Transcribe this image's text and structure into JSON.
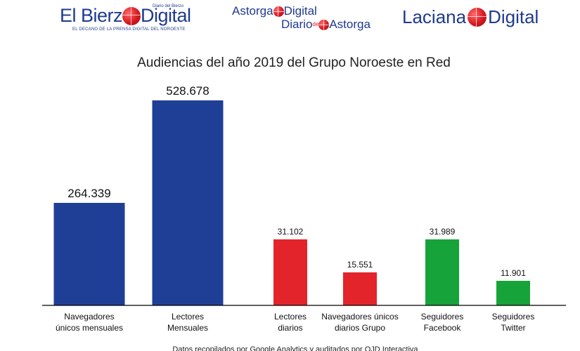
{
  "logos": {
    "bierzo": {
      "word1": "El Bierz",
      "word2": "Digital",
      "small": "Diario del Bierzo",
      "tagline": "EL DECANO DE LA PRENSA DIGITAL DEL NOROESTE"
    },
    "astorga": {
      "line1_a": "Astorga",
      "line1_b": "Digital",
      "line2_a": "Diario",
      "line2_sup": "de",
      "line2_b": "Astorga"
    },
    "laciana": {
      "word1": "Laciana",
      "word2": "Digital"
    }
  },
  "colors": {
    "blue": "#1f3f97",
    "red": "#e3242b",
    "green": "#16a43a"
  },
  "chart_data": {
    "type": "bar",
    "title": "Audiencias del año 2019 del Grupo Noroeste en Red",
    "footnote": "Datos recopilados por Google Analytics y auditados por OJD Interactiva",
    "groups": [
      {
        "color": "blue",
        "label_size": "large",
        "bars": [
          {
            "label": [
              "Navegadores",
              "únicos mensuales"
            ],
            "value": 264339,
            "value_label": "264.339"
          },
          {
            "label": [
              "Lectores",
              "Mensuales"
            ],
            "value": 528678,
            "value_label": "528.678"
          }
        ]
      },
      {
        "color": "red",
        "label_size": "small",
        "bars": [
          {
            "label": [
              "Lectores",
              "diarios"
            ],
            "value": 31102,
            "value_label": "31.102"
          },
          {
            "label": [
              "Navegadores únicos",
              "diarios Grupo"
            ],
            "value": 15551,
            "value_label": "15.551"
          }
        ]
      },
      {
        "color": "green",
        "label_size": "small",
        "bars": [
          {
            "label": [
              "Seguidores",
              "Facebook"
            ],
            "value": 31989,
            "value_label": "31.989"
          },
          {
            "label": [
              "Seguidores",
              "Twitter"
            ],
            "value": 11901,
            "value_label": "11.901"
          }
        ]
      }
    ]
  }
}
